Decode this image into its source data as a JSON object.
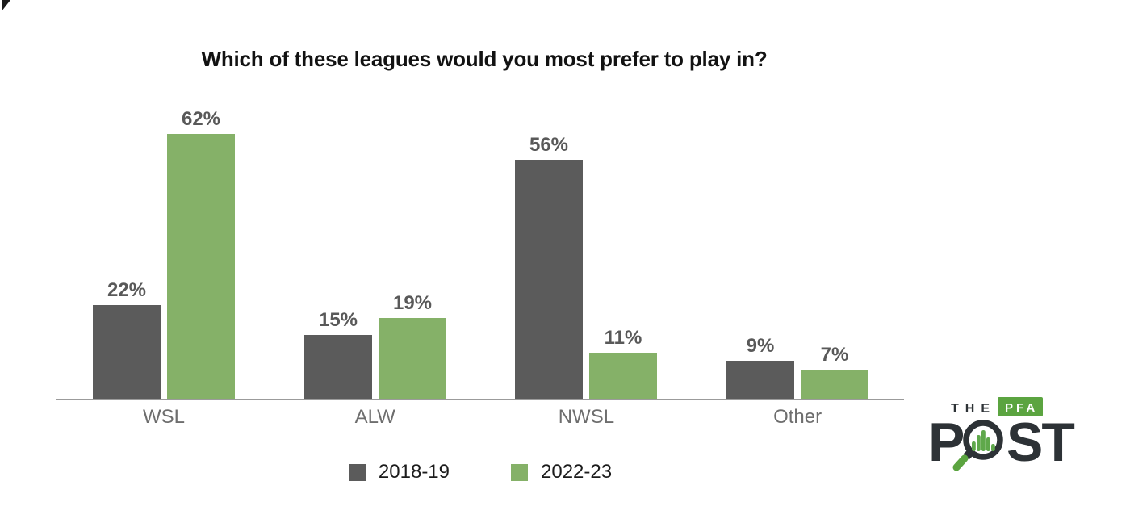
{
  "chart_data": {
    "type": "bar",
    "title": "Which of these leagues would you most prefer to play in?",
    "categories": [
      "WSL",
      "ALW",
      "NWSL",
      "Other"
    ],
    "series": [
      {
        "name": "2018-19",
        "color": "#5b5b5b",
        "values": [
          22,
          15,
          56,
          9
        ]
      },
      {
        "name": "2022-23",
        "color": "#85b168",
        "values": [
          62,
          19,
          11,
          7
        ]
      }
    ],
    "value_suffix": "%",
    "ylim": [
      0,
      70
    ],
    "grid": false,
    "legend_position": "bottom-center",
    "data_labels": true,
    "axis_color": "#9b9b9b",
    "value_label_color": "#595959",
    "category_label_color": "#6e6e6e"
  },
  "logo": {
    "the_text": "THE",
    "pfa_text": "PFA",
    "post_left": "P",
    "post_right": "ST",
    "colors": {
      "dark": "#2d3236",
      "green": "#5ba440",
      "magnifier_bars": "#5fa84b"
    }
  }
}
